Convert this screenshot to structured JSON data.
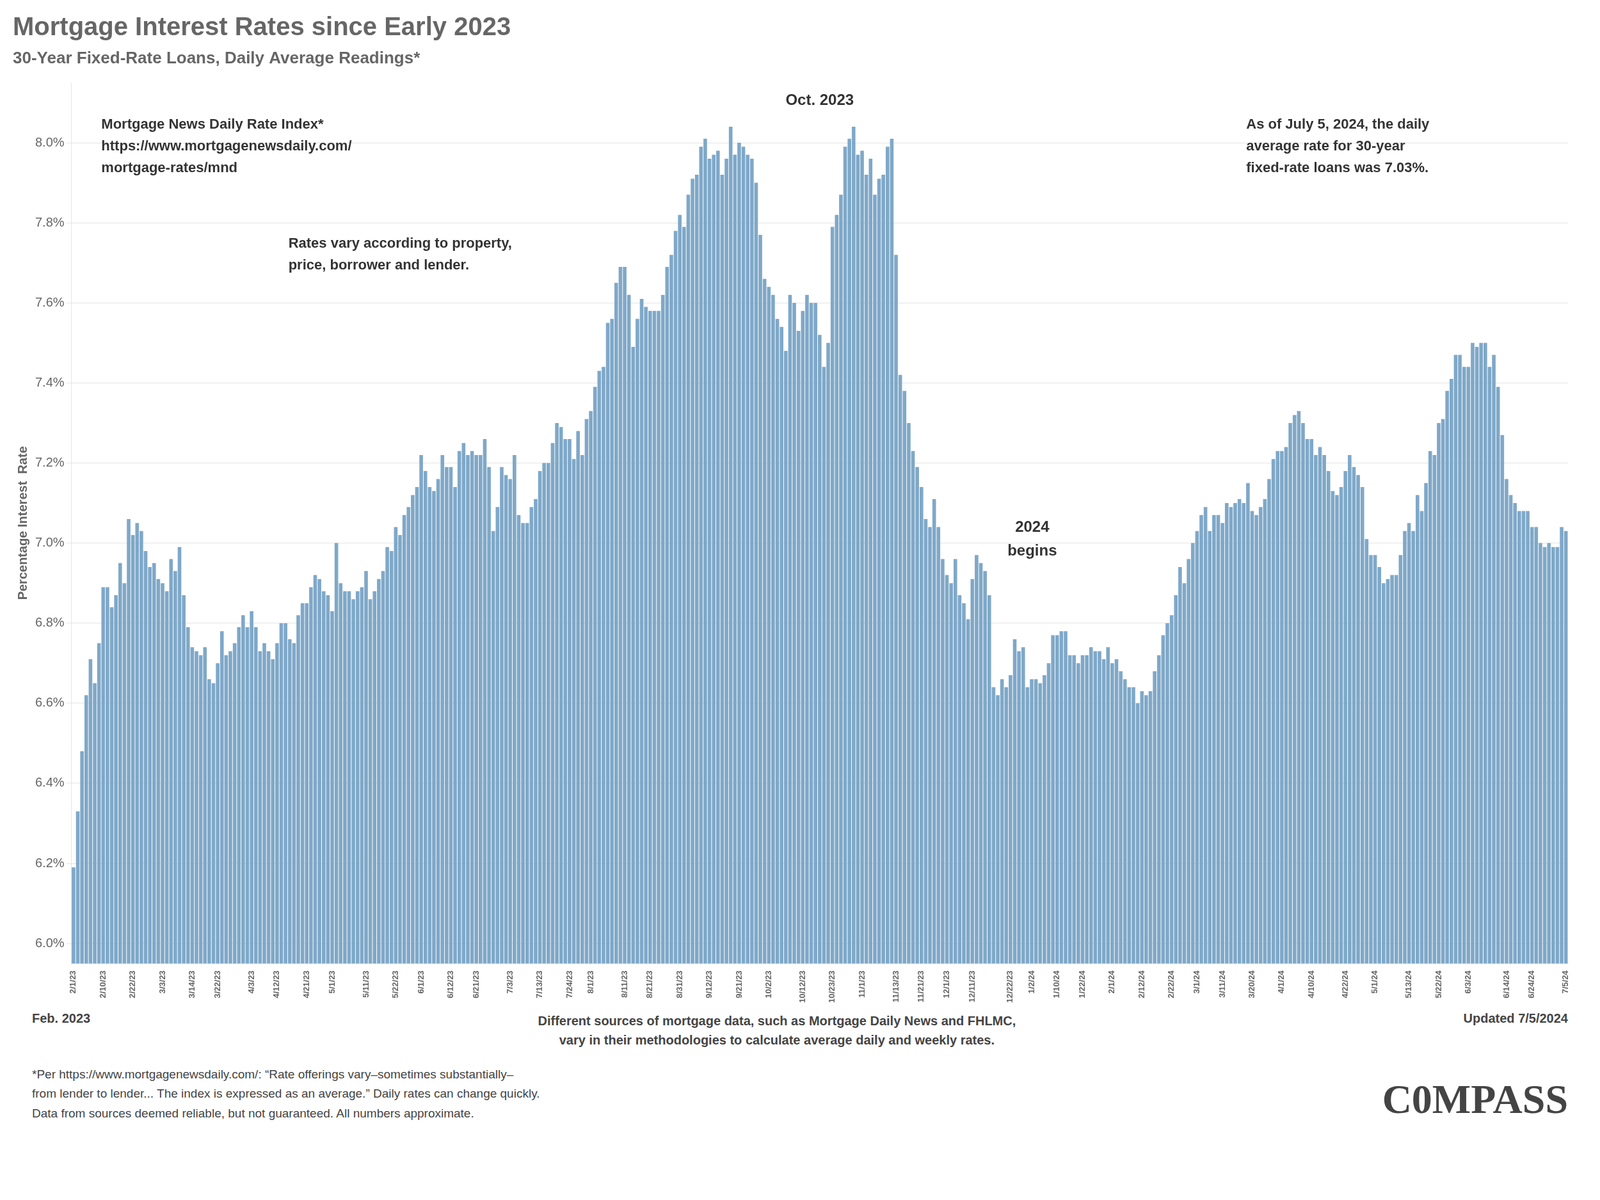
{
  "chart_data": {
    "type": "bar",
    "title": "Mortgage Interest Rates since Early 2023",
    "subtitle": "30-Year Fixed-Rate Loans, Daily Average Readings*",
    "ylabel": "Percentage Interest  Rate",
    "color": "#7fa8c8",
    "grid": true,
    "ylim": [
      5.95,
      8.15
    ],
    "yticks": [
      {
        "value": 6.0,
        "label": "6.0%"
      },
      {
        "value": 6.2,
        "label": "6.2%"
      },
      {
        "value": 6.4,
        "label": "6.4%"
      },
      {
        "value": 6.6,
        "label": "6.6%"
      },
      {
        "value": 6.8,
        "label": "6.8%"
      },
      {
        "value": 7.0,
        "label": "7.0%"
      },
      {
        "value": 7.2,
        "label": "7.2%"
      },
      {
        "value": 7.4,
        "label": "7.4%"
      },
      {
        "value": 7.6,
        "label": "7.6%"
      },
      {
        "value": 7.8,
        "label": "7.8%"
      },
      {
        "value": 8.0,
        "label": "8.0%"
      }
    ],
    "categories": [
      "2/1/23",
      null,
      null,
      null,
      null,
      null,
      null,
      "2/10/23",
      null,
      null,
      null,
      null,
      null,
      null,
      "2/22/23",
      null,
      null,
      null,
      null,
      null,
      null,
      "3/3/23",
      null,
      null,
      null,
      null,
      null,
      null,
      "3/14/23",
      null,
      null,
      null,
      null,
      null,
      "3/22/23",
      null,
      null,
      null,
      null,
      null,
      null,
      null,
      "4/3/23",
      null,
      null,
      null,
      null,
      null,
      "4/12/23",
      null,
      null,
      null,
      null,
      null,
      null,
      "4/21/23",
      null,
      null,
      null,
      null,
      null,
      "5/1/23",
      null,
      null,
      null,
      null,
      null,
      null,
      null,
      "5/11/23",
      null,
      null,
      null,
      null,
      null,
      null,
      "5/22/23",
      null,
      null,
      null,
      null,
      null,
      "6/1/23",
      null,
      null,
      null,
      null,
      null,
      null,
      "6/12/23",
      null,
      null,
      null,
      null,
      null,
      "6/21/23",
      null,
      null,
      null,
      null,
      null,
      null,
      null,
      "7/3/23",
      null,
      null,
      null,
      null,
      null,
      null,
      "7/13/23",
      null,
      null,
      null,
      null,
      null,
      null,
      "7/24/23",
      null,
      null,
      null,
      null,
      "8/1/23",
      null,
      null,
      null,
      null,
      null,
      null,
      null,
      "8/11/23",
      null,
      null,
      null,
      null,
      null,
      "8/21/23",
      null,
      null,
      null,
      null,
      null,
      null,
      "8/31/23",
      null,
      null,
      null,
      null,
      null,
      null,
      "9/12/23",
      null,
      null,
      null,
      null,
      null,
      null,
      "9/21/23",
      null,
      null,
      null,
      null,
      null,
      null,
      "10/2/23",
      null,
      null,
      null,
      null,
      null,
      null,
      null,
      "10/12/23",
      null,
      null,
      null,
      null,
      null,
      null,
      "10/23/23",
      null,
      null,
      null,
      null,
      null,
      null,
      "11/1/23",
      null,
      null,
      null,
      null,
      null,
      null,
      null,
      "11/13/23",
      null,
      null,
      null,
      null,
      null,
      "11/21/23",
      null,
      null,
      null,
      null,
      null,
      "12/1/23",
      null,
      null,
      null,
      null,
      null,
      "12/11/23",
      null,
      null,
      null,
      null,
      null,
      null,
      null,
      null,
      "12/22/23",
      null,
      null,
      null,
      null,
      "1/2/24",
      null,
      null,
      null,
      null,
      null,
      "1/10/24",
      null,
      null,
      null,
      null,
      null,
      "1/22/24",
      null,
      null,
      null,
      null,
      null,
      null,
      "2/1/24",
      null,
      null,
      null,
      null,
      null,
      null,
      "2/12/24",
      null,
      null,
      null,
      null,
      null,
      null,
      "2/22/24",
      null,
      null,
      null,
      null,
      null,
      "3/1/24",
      null,
      null,
      null,
      null,
      null,
      "3/11/24",
      null,
      null,
      null,
      null,
      null,
      null,
      "3/20/24",
      null,
      null,
      null,
      null,
      null,
      null,
      "4/1/24",
      null,
      null,
      null,
      null,
      null,
      null,
      "4/10/24",
      null,
      null,
      null,
      null,
      null,
      null,
      null,
      "4/22/24",
      null,
      null,
      null,
      null,
      null,
      null,
      "5/1/24",
      null,
      null,
      null,
      null,
      null,
      null,
      null,
      "5/13/24",
      null,
      null,
      null,
      null,
      null,
      null,
      "5/22/24",
      null,
      null,
      null,
      null,
      null,
      null,
      "6/3/24",
      null,
      null,
      null,
      null,
      null,
      null,
      null,
      null,
      "6/14/24",
      null,
      null,
      null,
      null,
      null,
      "6/24/24",
      null,
      null,
      null,
      null,
      null,
      null,
      null,
      "7/5/24"
    ],
    "values": [
      6.19,
      6.33,
      6.48,
      6.62,
      6.71,
      6.65,
      6.75,
      6.89,
      6.89,
      6.84,
      6.87,
      6.95,
      6.9,
      7.06,
      7.02,
      7.05,
      7.03,
      6.98,
      6.94,
      6.95,
      6.91,
      6.9,
      6.88,
      6.96,
      6.93,
      6.99,
      6.87,
      6.79,
      6.74,
      6.73,
      6.72,
      6.74,
      6.66,
      6.65,
      6.7,
      6.78,
      6.72,
      6.73,
      6.75,
      6.79,
      6.82,
      6.79,
      6.83,
      6.79,
      6.73,
      6.75,
      6.73,
      6.71,
      6.75,
      6.8,
      6.8,
      6.76,
      6.75,
      6.82,
      6.85,
      6.85,
      6.89,
      6.92,
      6.91,
      6.88,
      6.87,
      6.83,
      7.0,
      6.9,
      6.88,
      6.88,
      6.86,
      6.88,
      6.89,
      6.93,
      6.86,
      6.88,
      6.91,
      6.93,
      6.99,
      6.98,
      7.04,
      7.02,
      7.07,
      7.09,
      7.12,
      7.14,
      7.22,
      7.18,
      7.14,
      7.13,
      7.16,
      7.22,
      7.19,
      7.19,
      7.14,
      7.23,
      7.25,
      7.22,
      7.23,
      7.22,
      7.22,
      7.26,
      7.19,
      7.03,
      7.09,
      7.19,
      7.17,
      7.16,
      7.22,
      7.07,
      7.05,
      7.05,
      7.09,
      7.11,
      7.18,
      7.2,
      7.2,
      7.25,
      7.3,
      7.29,
      7.26,
      7.26,
      7.21,
      7.28,
      7.22,
      7.31,
      7.33,
      7.39,
      7.43,
      7.44,
      7.55,
      7.56,
      7.65,
      7.69,
      7.69,
      7.62,
      7.49,
      7.56,
      7.61,
      7.59,
      7.58,
      7.58,
      7.58,
      7.62,
      7.69,
      7.72,
      7.78,
      7.82,
      7.79,
      7.87,
      7.91,
      7.92,
      7.99,
      8.01,
      7.96,
      7.97,
      7.98,
      7.92,
      7.96,
      8.04,
      7.97,
      8.0,
      7.99,
      7.97,
      7.96,
      7.9,
      7.77,
      7.66,
      7.64,
      7.62,
      7.56,
      7.54,
      7.48,
      7.62,
      7.6,
      7.53,
      7.58,
      7.62,
      7.6,
      7.6,
      7.52,
      7.44,
      7.5,
      7.79,
      7.82,
      7.87,
      7.99,
      8.01,
      8.04,
      7.97,
      7.98,
      7.92,
      7.96,
      7.87,
      7.91,
      7.92,
      7.99,
      8.01,
      7.72,
      7.42,
      7.38,
      7.3,
      7.23,
      7.19,
      7.14,
      7.06,
      7.04,
      7.11,
      7.04,
      6.96,
      6.92,
      6.9,
      6.96,
      6.87,
      6.85,
      6.81,
      6.91,
      6.97,
      6.95,
      6.93,
      6.87,
      6.64,
      6.62,
      6.66,
      6.64,
      6.67,
      6.76,
      6.73,
      6.74,
      6.64,
      6.66,
      6.66,
      6.65,
      6.67,
      6.7,
      6.77,
      6.77,
      6.78,
      6.78,
      6.72,
      6.72,
      6.7,
      6.72,
      6.72,
      6.74,
      6.73,
      6.73,
      6.71,
      6.74,
      6.7,
      6.71,
      6.68,
      6.66,
      6.64,
      6.64,
      6.6,
      6.63,
      6.62,
      6.63,
      6.68,
      6.72,
      6.77,
      6.8,
      6.82,
      6.87,
      6.94,
      6.9,
      6.96,
      7.0,
      7.03,
      7.07,
      7.09,
      7.03,
      7.07,
      7.07,
      7.05,
      7.1,
      7.09,
      7.1,
      7.11,
      7.1,
      7.15,
      7.08,
      7.07,
      7.09,
      7.11,
      7.16,
      7.21,
      7.23,
      7.23,
      7.24,
      7.3,
      7.32,
      7.33,
      7.3,
      7.26,
      7.26,
      7.22,
      7.24,
      7.22,
      7.18,
      7.13,
      7.12,
      7.14,
      7.18,
      7.22,
      7.19,
      7.17,
      7.14,
      7.01,
      6.97,
      6.97,
      6.94,
      6.9,
      6.91,
      6.92,
      6.92,
      6.97,
      7.03,
      7.05,
      7.03,
      7.12,
      7.08,
      7.15,
      7.23,
      7.22,
      7.3,
      7.31,
      7.38,
      7.41,
      7.47,
      7.47,
      7.44,
      7.44,
      7.5,
      7.49,
      7.5,
      7.5,
      7.44,
      7.47,
      7.39,
      7.27,
      7.16,
      7.12,
      7.1,
      7.08,
      7.08,
      7.08,
      7.04,
      7.04,
      7.0,
      6.99,
      7.0,
      6.99,
      6.99,
      7.04,
      7.03
    ],
    "annotations": [
      "Mortgage News Daily Rate Index*\nhttps://www.mortgagenewsdaily.com/\nmortgage-rates/mnd",
      "Rates vary according to property,\nprice, borrower and lender.",
      "Oct. 2023",
      "2024\nbegins",
      "As of July 5, 2024, the daily\naverage rate for 30-year\nfixed-rate loans was 7.03%.",
      "Feb. 2023",
      "Updated 7/5/2024",
      "Different sources of mortgage data, such as Mortgage Daily News and FHLMC,\nvary in their methodologies to calculate average daily and weekly rates.",
      "C0MPASS"
    ],
    "footnote": "*Per https://www.mortgagenewsdaily.com/:  “Rate offerings vary–sometimes substantially–\nfrom lender to lender... The index is expressed as an average.” Daily rates can change quickly.\nData from sources deemed reliable, but not guaranteed. All numbers approximate."
  }
}
